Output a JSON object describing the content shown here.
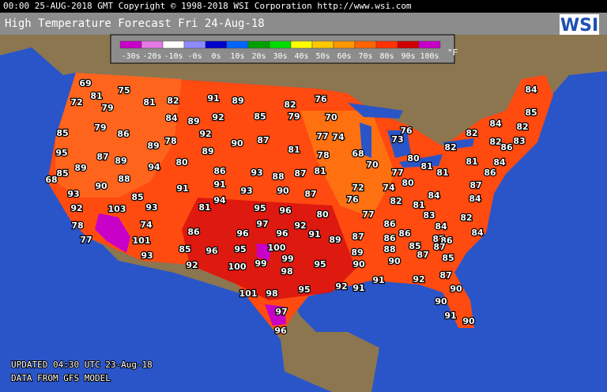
{
  "header": "00:00 25-AUG-2018 GMT Copyright © 1998-2018 WSI Corporation  http://www.wsi.com",
  "title": "High Temperature Forecast  Fri 24-Aug-18",
  "logo": "WSI",
  "legend": {
    "unit": "°F",
    "items": [
      {
        "label": "-30s",
        "color": "#c800c8"
      },
      {
        "label": "-20s",
        "color": "#e678e6"
      },
      {
        "label": "-10s",
        "color": "#ffffff"
      },
      {
        "label": "-0s",
        "color": "#8c8cff"
      },
      {
        "label": "0s",
        "color": "#0000c8"
      },
      {
        "label": "10s",
        "color": "#0064ff"
      },
      {
        "label": "20s",
        "color": "#00a000"
      },
      {
        "label": "30s",
        "color": "#00dc00"
      },
      {
        "label": "40s",
        "color": "#ffff00"
      },
      {
        "label": "50s",
        "color": "#ffc800"
      },
      {
        "label": "60s",
        "color": "#ff9600"
      },
      {
        "label": "70s",
        "color": "#ff6400"
      },
      {
        "label": "80s",
        "color": "#ff3200"
      },
      {
        "label": "90s",
        "color": "#d20000"
      },
      {
        "label": "100s",
        "color": "#c800c8"
      }
    ]
  },
  "temperatures": [
    69,
    75,
    72,
    81,
    79,
    81,
    82,
    91,
    89,
    82,
    76,
    85,
    79,
    86,
    84,
    89,
    92,
    85,
    79,
    70,
    76,
    73,
    84,
    85,
    84,
    82,
    92,
    90,
    87,
    77,
    74,
    82,
    82,
    86,
    83,
    95,
    87,
    89,
    89,
    78,
    89,
    81,
    78,
    68,
    70,
    82,
    80,
    81,
    81,
    84,
    85,
    89,
    94,
    80,
    86,
    93,
    88,
    87,
    81,
    77,
    80,
    81,
    86,
    68,
    90,
    88,
    91,
    91,
    93,
    90,
    87,
    72,
    74,
    84,
    87,
    93,
    85,
    94,
    76,
    82,
    81,
    84,
    92,
    103,
    93,
    81,
    95,
    96,
    80,
    77,
    83,
    82,
    78,
    74,
    97,
    92,
    86,
    84,
    77,
    101,
    86,
    96,
    96,
    91,
    89,
    87,
    86,
    86,
    87,
    84,
    85,
    96,
    95,
    100,
    89,
    88,
    85,
    86,
    87,
    93,
    99,
    99,
    95,
    87,
    85,
    92,
    100,
    98,
    90,
    90,
    91,
    92,
    87,
    92,
    91,
    95,
    101,
    98,
    90,
    90,
    97,
    91,
    90,
    96
  ],
  "footer": {
    "updated": "UPDATED 04:30 UTC 23-Aug-18",
    "source": "DATA FROM GFS MODEL"
  }
}
